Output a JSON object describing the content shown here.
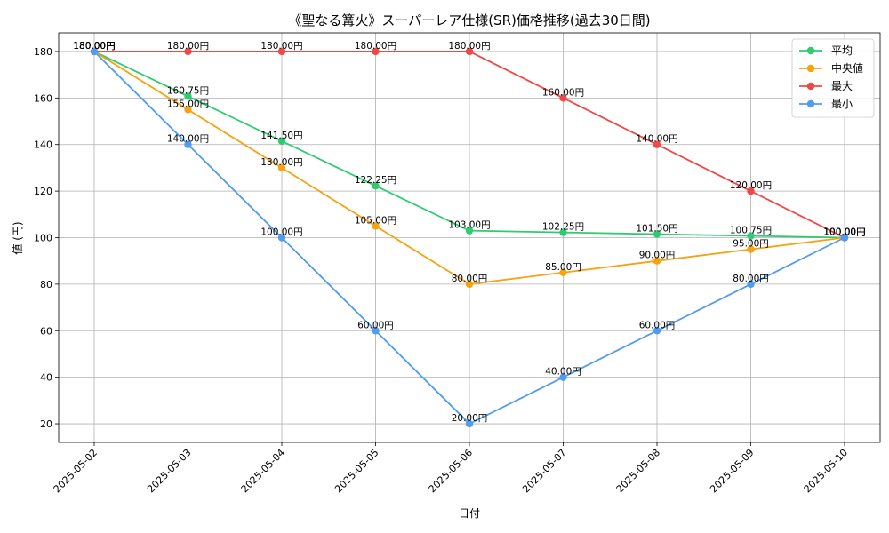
{
  "chart_data": {
    "type": "line",
    "title": "《聖なる篝火》スーパーレア仕様(SR)価格推移(過去30日間)",
    "xlabel": "日付",
    "ylabel": "値 (円)",
    "categories": [
      "2025-05-02",
      "2025-05-03",
      "2025-05-04",
      "2025-05-05",
      "2025-05-06",
      "2025-05-07",
      "2025-05-08",
      "2025-05-09",
      "2025-05-10"
    ],
    "ylim": [
      12,
      188
    ],
    "yticks": [
      20,
      40,
      60,
      80,
      100,
      120,
      140,
      160,
      180
    ],
    "grid": true,
    "legend_position": "top-right",
    "value_suffix": "円",
    "series": [
      {
        "name": "平均",
        "color": "#2ecc71",
        "values": [
          180.0,
          160.75,
          141.5,
          122.25,
          103.0,
          102.25,
          101.5,
          100.75,
          100.0
        ]
      },
      {
        "name": "中央値",
        "color": "#f5a30f",
        "values": [
          180.0,
          155.0,
          130.0,
          105.0,
          80.0,
          85.0,
          90.0,
          95.0,
          100.0
        ]
      },
      {
        "name": "最大",
        "color": "#f04848",
        "values": [
          180.0,
          180.0,
          180.0,
          180.0,
          180.0,
          160.0,
          140.0,
          120.0,
          100.0
        ]
      },
      {
        "name": "最小",
        "color": "#4f9cf0",
        "values": [
          180.0,
          140.0,
          100.0,
          60.0,
          20.0,
          40.0,
          60.0,
          80.0,
          100.0
        ]
      }
    ]
  }
}
